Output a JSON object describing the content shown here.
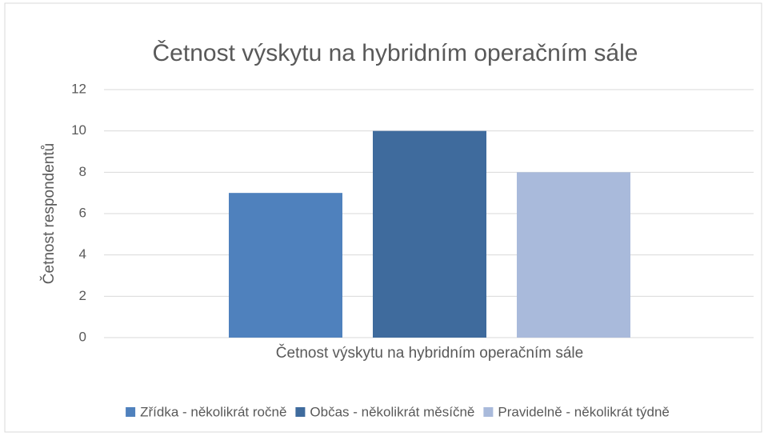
{
  "chart_data": {
    "type": "bar",
    "title": "Četnost výskytu na hybridním operačním sále",
    "y_label": "Četnost respondentů",
    "categories": [
      "Četnost výskytu na hybridním operačním sále"
    ],
    "series": [
      {
        "name": "Zřídka - několikrát ročně",
        "color": "#4f81bd",
        "values": [
          7
        ]
      },
      {
        "name": "Občas - několikrát měsíčně",
        "color": "#3f6b9d",
        "values": [
          10
        ]
      },
      {
        "name": "Pravidelně - několikrát týdně",
        "color": "#a9badb",
        "values": [
          8
        ]
      }
    ],
    "ylim": [
      0,
      12
    ],
    "yticks": [
      0,
      2,
      4,
      6,
      8,
      10,
      12
    ],
    "grid": true,
    "legend": "bottom"
  }
}
